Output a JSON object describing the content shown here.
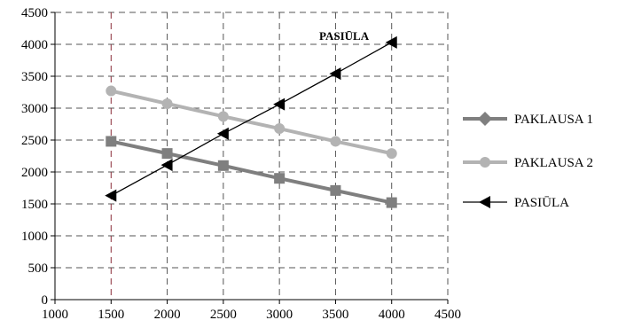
{
  "chart_data": {
    "type": "line",
    "title": "",
    "xlabel": "",
    "ylabel": "",
    "xlim": [
      1000,
      4500
    ],
    "ylim": [
      0,
      4500
    ],
    "x_ticks": [
      1000,
      1500,
      2000,
      2500,
      3000,
      3500,
      4000,
      4500
    ],
    "y_ticks": [
      0,
      500,
      1000,
      1500,
      2000,
      2500,
      3000,
      3500,
      4000,
      4500
    ],
    "grid": true,
    "legend_position": "right",
    "annotation": "PASIŪLA",
    "series": [
      {
        "name": "PAKLAUSA 1",
        "marker": "square",
        "color": "#7f7f7f",
        "x": [
          1500,
          2000,
          2500,
          3000,
          3500,
          4000
        ],
        "y": [
          2480,
          2290,
          2100,
          1900,
          1710,
          1520
        ]
      },
      {
        "name": "PAKLAUSA 2",
        "marker": "circle",
        "color": "#b3b3b3",
        "x": [
          1500,
          2000,
          2500,
          3000,
          3500,
          4000
        ],
        "y": [
          3270,
          3070,
          2870,
          2680,
          2480,
          2290
        ]
      },
      {
        "name": "PASIŪLA",
        "marker": "triangle",
        "color": "#000000",
        "x": [
          1500,
          2000,
          2500,
          3000,
          3500,
          4000
        ],
        "y": [
          1630,
          2110,
          2600,
          3060,
          3540,
          4030
        ]
      }
    ]
  },
  "legend": [
    {
      "label": "PAKLAUSA 1",
      "marker": "diamond",
      "color": "#7f7f7f"
    },
    {
      "label": "PAKLAUSA 2",
      "marker": "circle",
      "color": "#b3b3b3"
    },
    {
      "label": "PASIŪLA",
      "marker": "triangle",
      "color": "#000000"
    }
  ]
}
